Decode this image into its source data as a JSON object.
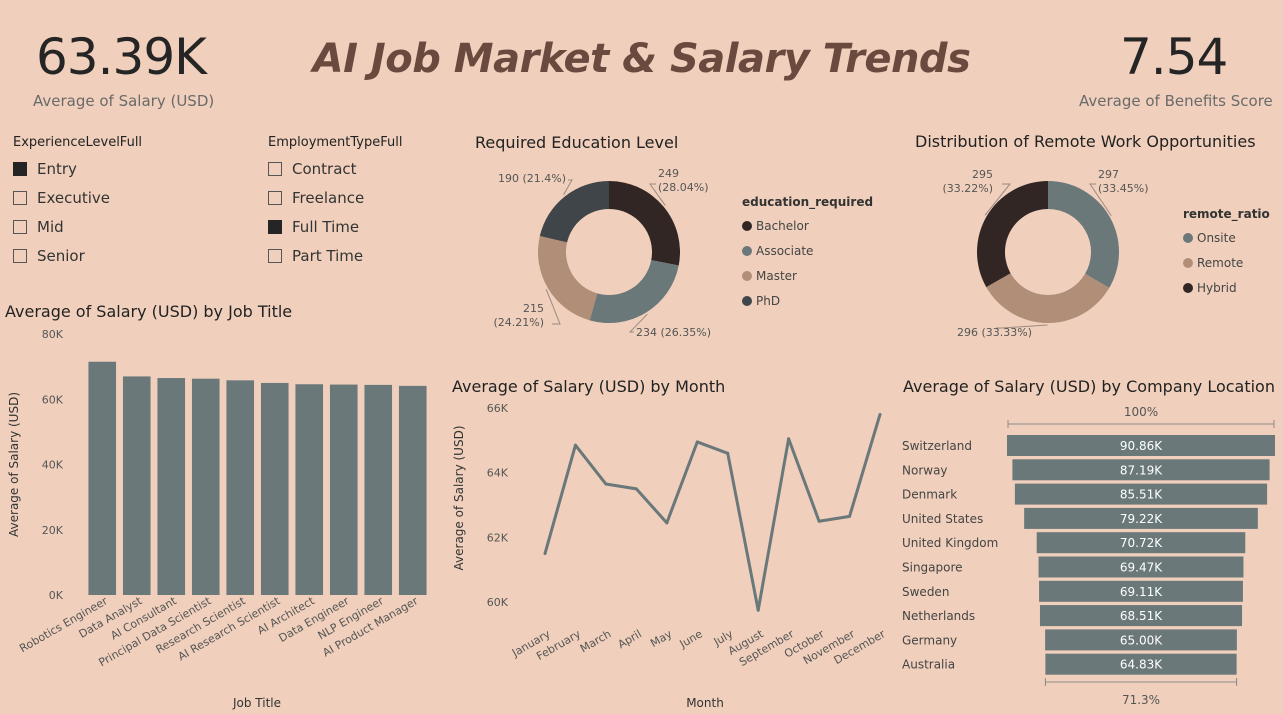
{
  "colors": {
    "background": "#f0d0bc",
    "bar": "#6a787a",
    "title": "#6a4a3f",
    "dark": "#322625",
    "slate": "#6a787a",
    "tan": "#b08e78",
    "charcoal": "#3f4548"
  },
  "kpi_left": {
    "value": "63.39K",
    "label": "Average of Salary (USD)"
  },
  "kpi_right": {
    "value": "7.54",
    "label": "Average of Benefits Score"
  },
  "title": "AI Job Market & Salary Trends",
  "slicer_experience": {
    "title": "ExperienceLevelFull",
    "items": [
      {
        "label": "Entry",
        "checked": true
      },
      {
        "label": "Executive",
        "checked": false
      },
      {
        "label": "Mid",
        "checked": false
      },
      {
        "label": "Senior",
        "checked": false
      }
    ]
  },
  "slicer_employment": {
    "title": "EmploymentTypeFull",
    "items": [
      {
        "label": "Contract",
        "checked": false
      },
      {
        "label": "Freelance",
        "checked": false
      },
      {
        "label": "Full Time",
        "checked": true
      },
      {
        "label": "Part Time",
        "checked": false
      }
    ]
  },
  "chart_data": [
    {
      "type": "pie",
      "title": "Required Education Level",
      "legend_title": "education_required",
      "slices": [
        {
          "name": "Bachelor",
          "value": 249,
          "label": "249 (28.04%)",
          "color": "#322625"
        },
        {
          "name": "Associate",
          "value": 234,
          "label": "234 (26.35%)",
          "color": "#6a787a"
        },
        {
          "name": "Master",
          "value": 215,
          "label": "215 (24.21%)",
          "color": "#b08e78"
        },
        {
          "name": "PhD",
          "value": 190,
          "label": "190 (21.4%)",
          "color": "#3f4548"
        }
      ]
    },
    {
      "type": "pie",
      "title": "Distribution of Remote Work Opportunities",
      "legend_title": "remote_ratio",
      "slices": [
        {
          "name": "Onsite",
          "value": 297,
          "label": "297 (33.45%)",
          "color": "#6a787a"
        },
        {
          "name": "Remote",
          "value": 296,
          "label": "296 (33.33%)",
          "color": "#b08e78"
        },
        {
          "name": "Hybrid",
          "value": 295,
          "label": "295 (33.22%)",
          "color": "#322625"
        }
      ]
    },
    {
      "type": "bar",
      "title": "Average of Salary (USD) by Job Title",
      "xlabel": "Job Title",
      "ylabel": "Average of Salary (USD)",
      "ylim": [
        0,
        80000
      ],
      "yticks": [
        "0K",
        "20K",
        "40K",
        "60K",
        "80K"
      ],
      "categories": [
        "Robotics Engineer",
        "Data Analyst",
        "AI Consultant",
        "Principal Data Scientist",
        "Research Scientist",
        "AI Research Scientist",
        "AI Architect",
        "Data Engineer",
        "NLP Engineer",
        "AI Product Manager"
      ],
      "values": [
        71500,
        67000,
        66500,
        66300,
        65800,
        65000,
        64600,
        64500,
        64400,
        64100
      ]
    },
    {
      "type": "line",
      "title": "Average of Salary (USD) by Month",
      "xlabel": "Month",
      "ylabel": "Average of Salary (USD)",
      "ylim": [
        59500,
        66000
      ],
      "yticks": [
        "60K",
        "62K",
        "64K",
        "66K"
      ],
      "categories": [
        "January",
        "February",
        "March",
        "April",
        "May",
        "June",
        "July",
        "August",
        "September",
        "October",
        "November",
        "December"
      ],
      "values": [
        61500,
        64850,
        63650,
        63500,
        62450,
        64950,
        64600,
        59750,
        65050,
        62500,
        62650,
        65800
      ]
    },
    {
      "type": "bar",
      "orientation": "funnel",
      "title": "Average of Salary (USD) by Company Location",
      "top_label": "100%",
      "bottom_label": "71.3%",
      "categories": [
        "Switzerland",
        "Norway",
        "Denmark",
        "United States",
        "United Kingdom",
        "Singapore",
        "Sweden",
        "Netherlands",
        "Germany",
        "Australia"
      ],
      "values": [
        90860,
        87190,
        85510,
        79220,
        70720,
        69470,
        69110,
        68510,
        65000,
        64830
      ],
      "value_labels": [
        "90.86K",
        "87.19K",
        "85.51K",
        "79.22K",
        "70.72K",
        "69.47K",
        "69.11K",
        "68.51K",
        "65.00K",
        "64.83K"
      ]
    }
  ]
}
